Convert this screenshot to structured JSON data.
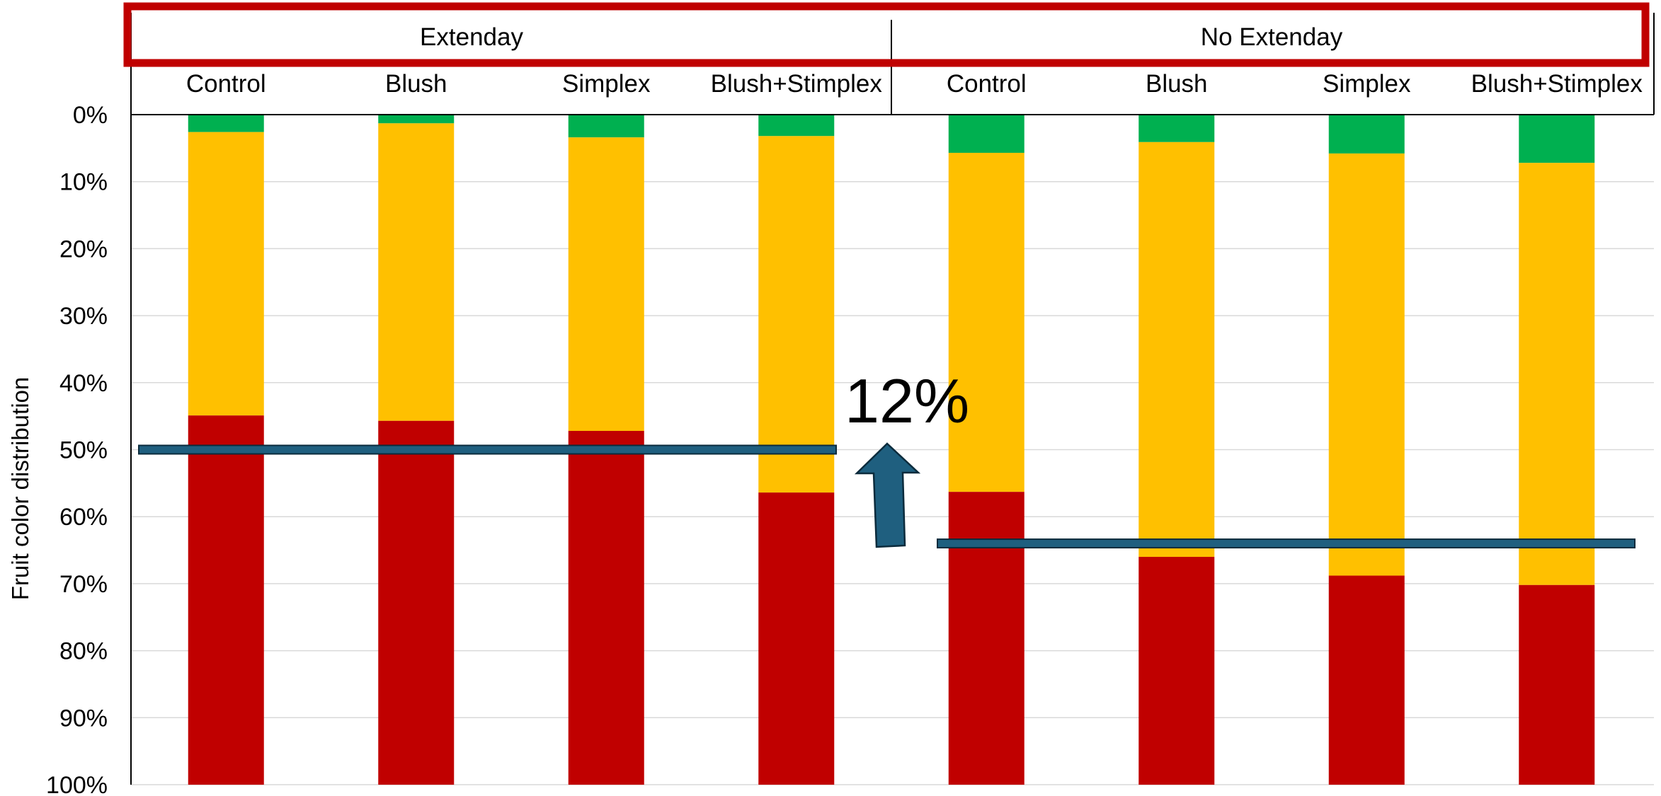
{
  "chart_data": {
    "type": "bar",
    "stacked": true,
    "orientation": "vertical",
    "ylabel": "Fruit color distribution",
    "y_ticks": [
      "0%",
      "10%",
      "20%",
      "30%",
      "40%",
      "50%",
      "60%",
      "70%",
      "80%",
      "90%",
      "100%"
    ],
    "ylim": [
      0,
      100
    ],
    "y_axis_direction": "inverted (0% at top, 100% at bottom)",
    "grid": true,
    "groups": [
      {
        "label": "Extenday",
        "categories": [
          "Control",
          "Blush",
          "Simplex",
          "Blush+Stimplex"
        ]
      },
      {
        "label": "No Extenday",
        "categories": [
          "Control",
          "Blush",
          "Simplex",
          "Blush+Stimplex"
        ]
      }
    ],
    "categories": [
      "Control",
      "Blush",
      "Simplex",
      "Blush+Stimplex",
      "Control",
      "Blush",
      "Simplex",
      "Blush+Stimplex"
    ],
    "series": [
      {
        "color": "#00b050",
        "values": [
          2.6,
          1.3,
          3.4,
          3.2,
          5.7,
          4.1,
          5.8,
          7.2
        ]
      },
      {
        "color": "#ffc000",
        "values": [
          42.3,
          44.4,
          43.8,
          53.2,
          50.6,
          61.9,
          63.0,
          63.0
        ]
      },
      {
        "color": "#c00000",
        "values": [
          55.1,
          54.3,
          52.8,
          43.6,
          43.7,
          34.0,
          31.2,
          29.8
        ]
      }
    ],
    "annotations": {
      "label": "12%",
      "extenday_reference_line": 50,
      "no_extenday_reference_line": 64,
      "line_color": "#1f5f7f",
      "arrow_color": "#1f5f7f"
    },
    "highlight_box_color": "#c00000"
  }
}
